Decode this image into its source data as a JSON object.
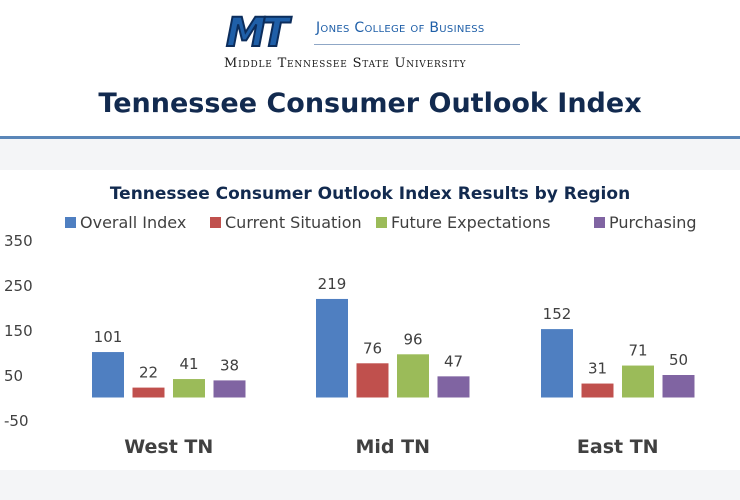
{
  "header": {
    "logo_text": "MT",
    "college": "Jones College of Business",
    "university": "Middle Tennessee State University",
    "page_title": "Tennessee Consumer Outlook Index"
  },
  "colors": {
    "overall": "#4f7fc1",
    "current": "#c0504d",
    "future": "#9bbb59",
    "purchasing": "#8064a2",
    "title_text": "#122a4f",
    "accent_rule": "#5a86b8"
  },
  "chart_data": {
    "type": "bar",
    "title": "Tennessee Consumer Outlook Index Results by Region",
    "categories": [
      "West TN",
      "Mid TN",
      "East TN"
    ],
    "series": [
      {
        "name": "Overall Index",
        "values": [
          101,
          219,
          152
        ]
      },
      {
        "name": "Current Situation",
        "values": [
          22,
          76,
          31
        ]
      },
      {
        "name": "Future Expectations",
        "values": [
          41,
          96,
          71
        ]
      },
      {
        "name": "Purchasing",
        "values": [
          38,
          47,
          50
        ]
      }
    ],
    "yticks": [
      "350",
      "250",
      "150",
      "50",
      "-50"
    ],
    "ylim": [
      -50,
      350
    ],
    "y_baseline": 0,
    "legend": "top",
    "grid": false,
    "data_labels": true
  }
}
